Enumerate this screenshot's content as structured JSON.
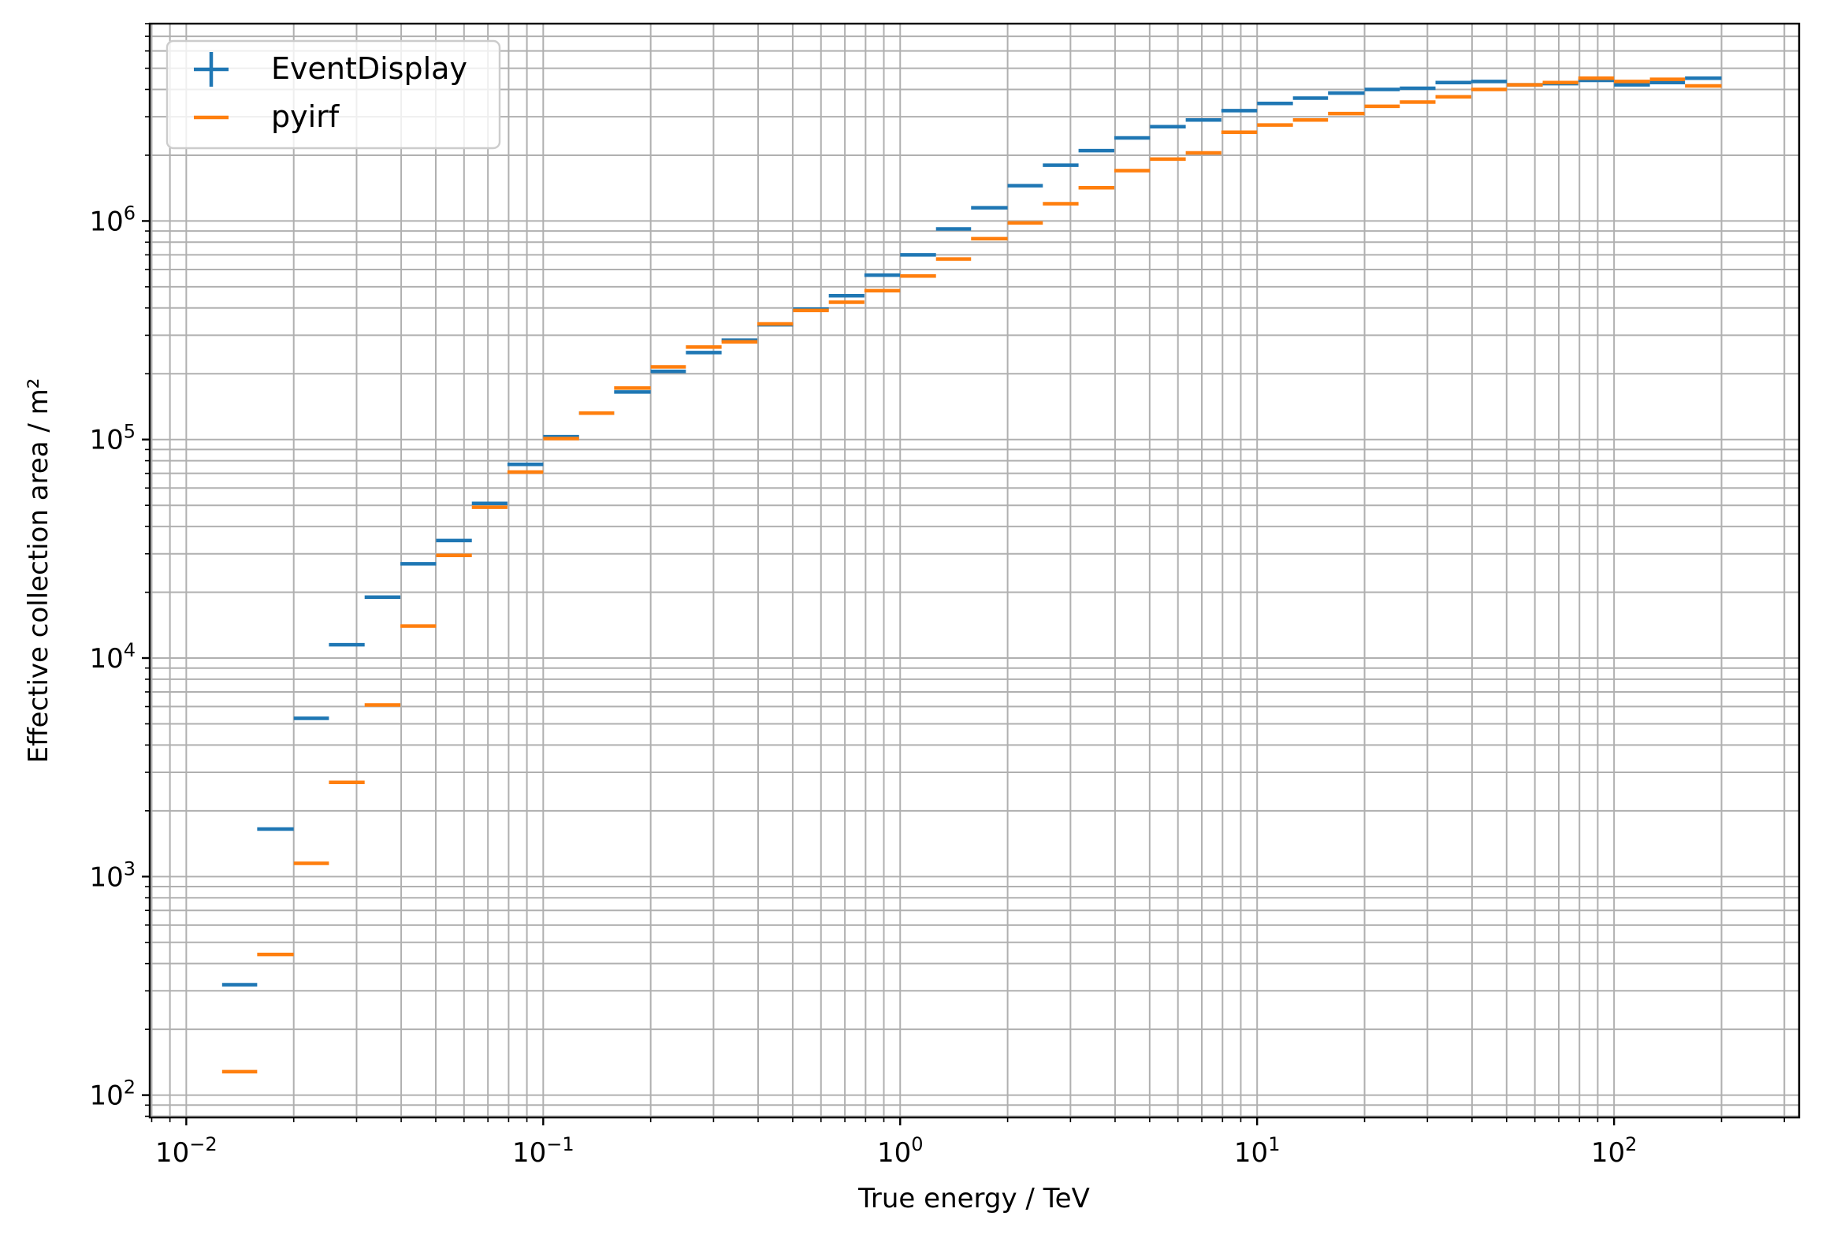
{
  "chart_data": {
    "type": "errorbar-step",
    "xlabel": "True energy / TeV",
    "ylabel": "Effective collection area / m²",
    "xscale": "log",
    "yscale": "log",
    "xlim": [
      0.0079,
      330
    ],
    "ylim": [
      79,
      8000000
    ],
    "grid": "major and minor",
    "legend_position": "upper left",
    "x_ticks": [
      {
        "base": "10",
        "exp": "−2",
        "value": 0.01
      },
      {
        "base": "10",
        "exp": "−1",
        "value": 0.1
      },
      {
        "base": "10",
        "exp": "0",
        "value": 1
      },
      {
        "base": "10",
        "exp": "1",
        "value": 10
      },
      {
        "base": "10",
        "exp": "2",
        "value": 100
      }
    ],
    "y_ticks": [
      {
        "base": "10",
        "exp": "2",
        "value": 100
      },
      {
        "base": "10",
        "exp": "3",
        "value": 1000
      },
      {
        "base": "10",
        "exp": "4",
        "value": 10000
      },
      {
        "base": "10",
        "exp": "5",
        "value": 100000
      },
      {
        "base": "10",
        "exp": "6",
        "value": 1000000
      }
    ],
    "bin_edges_TeV": [
      0.0126,
      0.0158,
      0.02,
      0.0251,
      0.0316,
      0.0398,
      0.0501,
      0.0631,
      0.0794,
      0.1,
      0.126,
      0.158,
      0.2,
      0.251,
      0.316,
      0.398,
      0.501,
      0.631,
      0.794,
      1.0,
      1.26,
      1.58,
      2.0,
      2.51,
      3.16,
      3.98,
      5.01,
      6.31,
      7.94,
      10.0,
      12.6,
      15.8,
      20.0,
      25.1,
      31.6,
      39.8,
      50.1,
      63.1,
      79.4,
      100,
      126,
      158,
      200
    ],
    "series": [
      {
        "name": "EventDisplay",
        "color": "#1f77b4",
        "marker": "errorbar",
        "values": [
          320,
          1650,
          5300,
          11500,
          19000,
          27000,
          34500,
          51000,
          77000,
          103000,
          132000,
          165000,
          205000,
          250000,
          285000,
          335000,
          395000,
          455000,
          565000,
          700000,
          920000,
          1150000,
          1450000,
          1800000,
          2100000,
          2400000,
          2700000,
          2900000,
          3200000,
          3450000,
          3650000,
          3850000,
          4000000,
          4050000,
          4300000,
          4350000,
          4200000,
          4250000,
          4400000,
          4200000,
          4300000,
          4500000
        ]
      },
      {
        "name": "pyirf",
        "color": "#ff7f0e",
        "marker": "step",
        "values": [
          128,
          440,
          1150,
          2700,
          6100,
          14000,
          29500,
          49000,
          71000,
          101000,
          132000,
          172000,
          215000,
          265000,
          280000,
          338000,
          390000,
          425000,
          480000,
          560000,
          670000,
          830000,
          980000,
          1200000,
          1420000,
          1700000,
          1920000,
          2050000,
          2550000,
          2750000,
          2900000,
          3100000,
          3350000,
          3500000,
          3700000,
          4000000,
          4200000,
          4300000,
          4500000,
          4350000,
          4450000,
          4150000
        ]
      }
    ]
  }
}
